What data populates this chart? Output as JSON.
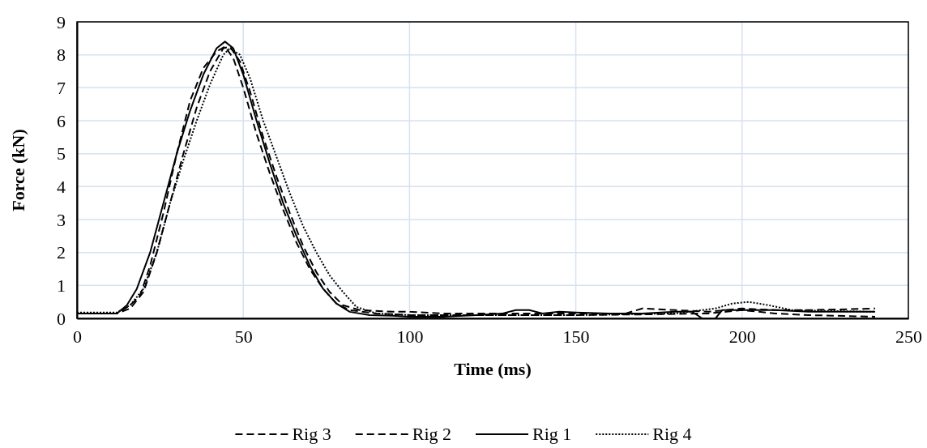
{
  "chart_data": {
    "type": "line",
    "xlabel": "Time (ms)",
    "ylabel": "Force (kN)",
    "xlim": [
      0,
      250
    ],
    "xticks": [
      0,
      50,
      100,
      150,
      200,
      250
    ],
    "ylim": [
      0,
      9
    ],
    "yticks": [
      0,
      1,
      2,
      3,
      4,
      5,
      6,
      7,
      8,
      9
    ],
    "grid": true,
    "legend": "bottom",
    "series": [
      {
        "name": "Rig 3",
        "color": "#000000",
        "line_style": "dashed",
        "x": [
          0,
          12,
          16,
          19,
          22,
          26,
          30,
          34,
          38,
          42,
          44.5,
          47,
          50,
          54,
          58,
          62,
          66,
          70,
          74,
          78,
          82,
          90,
          100,
          120,
          150,
          170,
          190,
          200,
          210,
          220,
          240
        ],
        "values": [
          0.15,
          0.15,
          0.4,
          0.7,
          1.6,
          3.2,
          5,
          6.6,
          7.6,
          8.1,
          8.25,
          7.9,
          7,
          5.6,
          4.4,
          3.3,
          2.3,
          1.5,
          0.9,
          0.45,
          0.25,
          0.15,
          0.1,
          0.1,
          0.1,
          0.12,
          0.15,
          0.25,
          0.15,
          0.1,
          0.05
        ]
      },
      {
        "name": "Rig 2",
        "color": "#000000",
        "line_style": "dashed",
        "x": [
          0,
          12,
          16,
          20,
          24,
          28,
          32,
          36,
          40,
          44,
          46,
          49,
          52,
          56,
          60,
          64,
          68,
          72,
          76,
          80,
          85,
          95,
          100,
          110,
          130,
          150,
          165,
          170,
          180,
          190,
          200,
          210,
          220,
          240
        ],
        "values": [
          0.15,
          0.15,
          0.3,
          0.8,
          2,
          3.5,
          5,
          6.4,
          7.5,
          8.2,
          8.25,
          7.8,
          6.9,
          5.5,
          4.3,
          3.2,
          2.2,
          1.4,
          0.8,
          0.4,
          0.25,
          0.2,
          0.2,
          0.15,
          0.15,
          0.15,
          0.15,
          0.3,
          0.25,
          0.2,
          0.3,
          0.25,
          0.25,
          0.3
        ]
      },
      {
        "name": "Rig 1",
        "color": "#000000",
        "line_style": "solid",
        "x": [
          0,
          12,
          15,
          18,
          22,
          26,
          30,
          34,
          38,
          42,
          44.5,
          47,
          50,
          54,
          58,
          62,
          66,
          70,
          74,
          78,
          82,
          88,
          95,
          100,
          110,
          120,
          128,
          132,
          136,
          140,
          145,
          150,
          160,
          170,
          180,
          185,
          188,
          192,
          194,
          200,
          210,
          220,
          230,
          240
        ],
        "values": [
          0.15,
          0.15,
          0.4,
          0.9,
          2,
          3.5,
          5,
          6.3,
          7.4,
          8.2,
          8.4,
          8.2,
          7.4,
          6,
          4.7,
          3.5,
          2.5,
          1.6,
          0.9,
          0.45,
          0.2,
          0.1,
          0.08,
          0.05,
          0.05,
          0.1,
          0.15,
          0.25,
          0.25,
          0.15,
          0.2,
          0.18,
          0.15,
          0.15,
          0.2,
          0.2,
          0,
          0,
          0.25,
          0.25,
          0.25,
          0.2,
          0.2,
          0.2
        ]
      },
      {
        "name": "Rig 4",
        "color": "#000000",
        "line_style": "dotted",
        "x": [
          0,
          12,
          16,
          20,
          24,
          28,
          32,
          36,
          40,
          44,
          46,
          49,
          52,
          56,
          60,
          64,
          68,
          72,
          76,
          80,
          84,
          90,
          100,
          120,
          150,
          180,
          192,
          197,
          202,
          208,
          215,
          240
        ],
        "values": [
          0.18,
          0.18,
          0.4,
          0.9,
          2,
          3.5,
          4.8,
          6,
          7.1,
          8,
          8.2,
          8,
          7.3,
          6,
          4.9,
          3.8,
          2.8,
          2,
          1.3,
          0.8,
          0.35,
          0.15,
          0.1,
          0.1,
          0.1,
          0.15,
          0.3,
          0.45,
          0.5,
          0.4,
          0.25,
          0.2
        ]
      }
    ]
  }
}
